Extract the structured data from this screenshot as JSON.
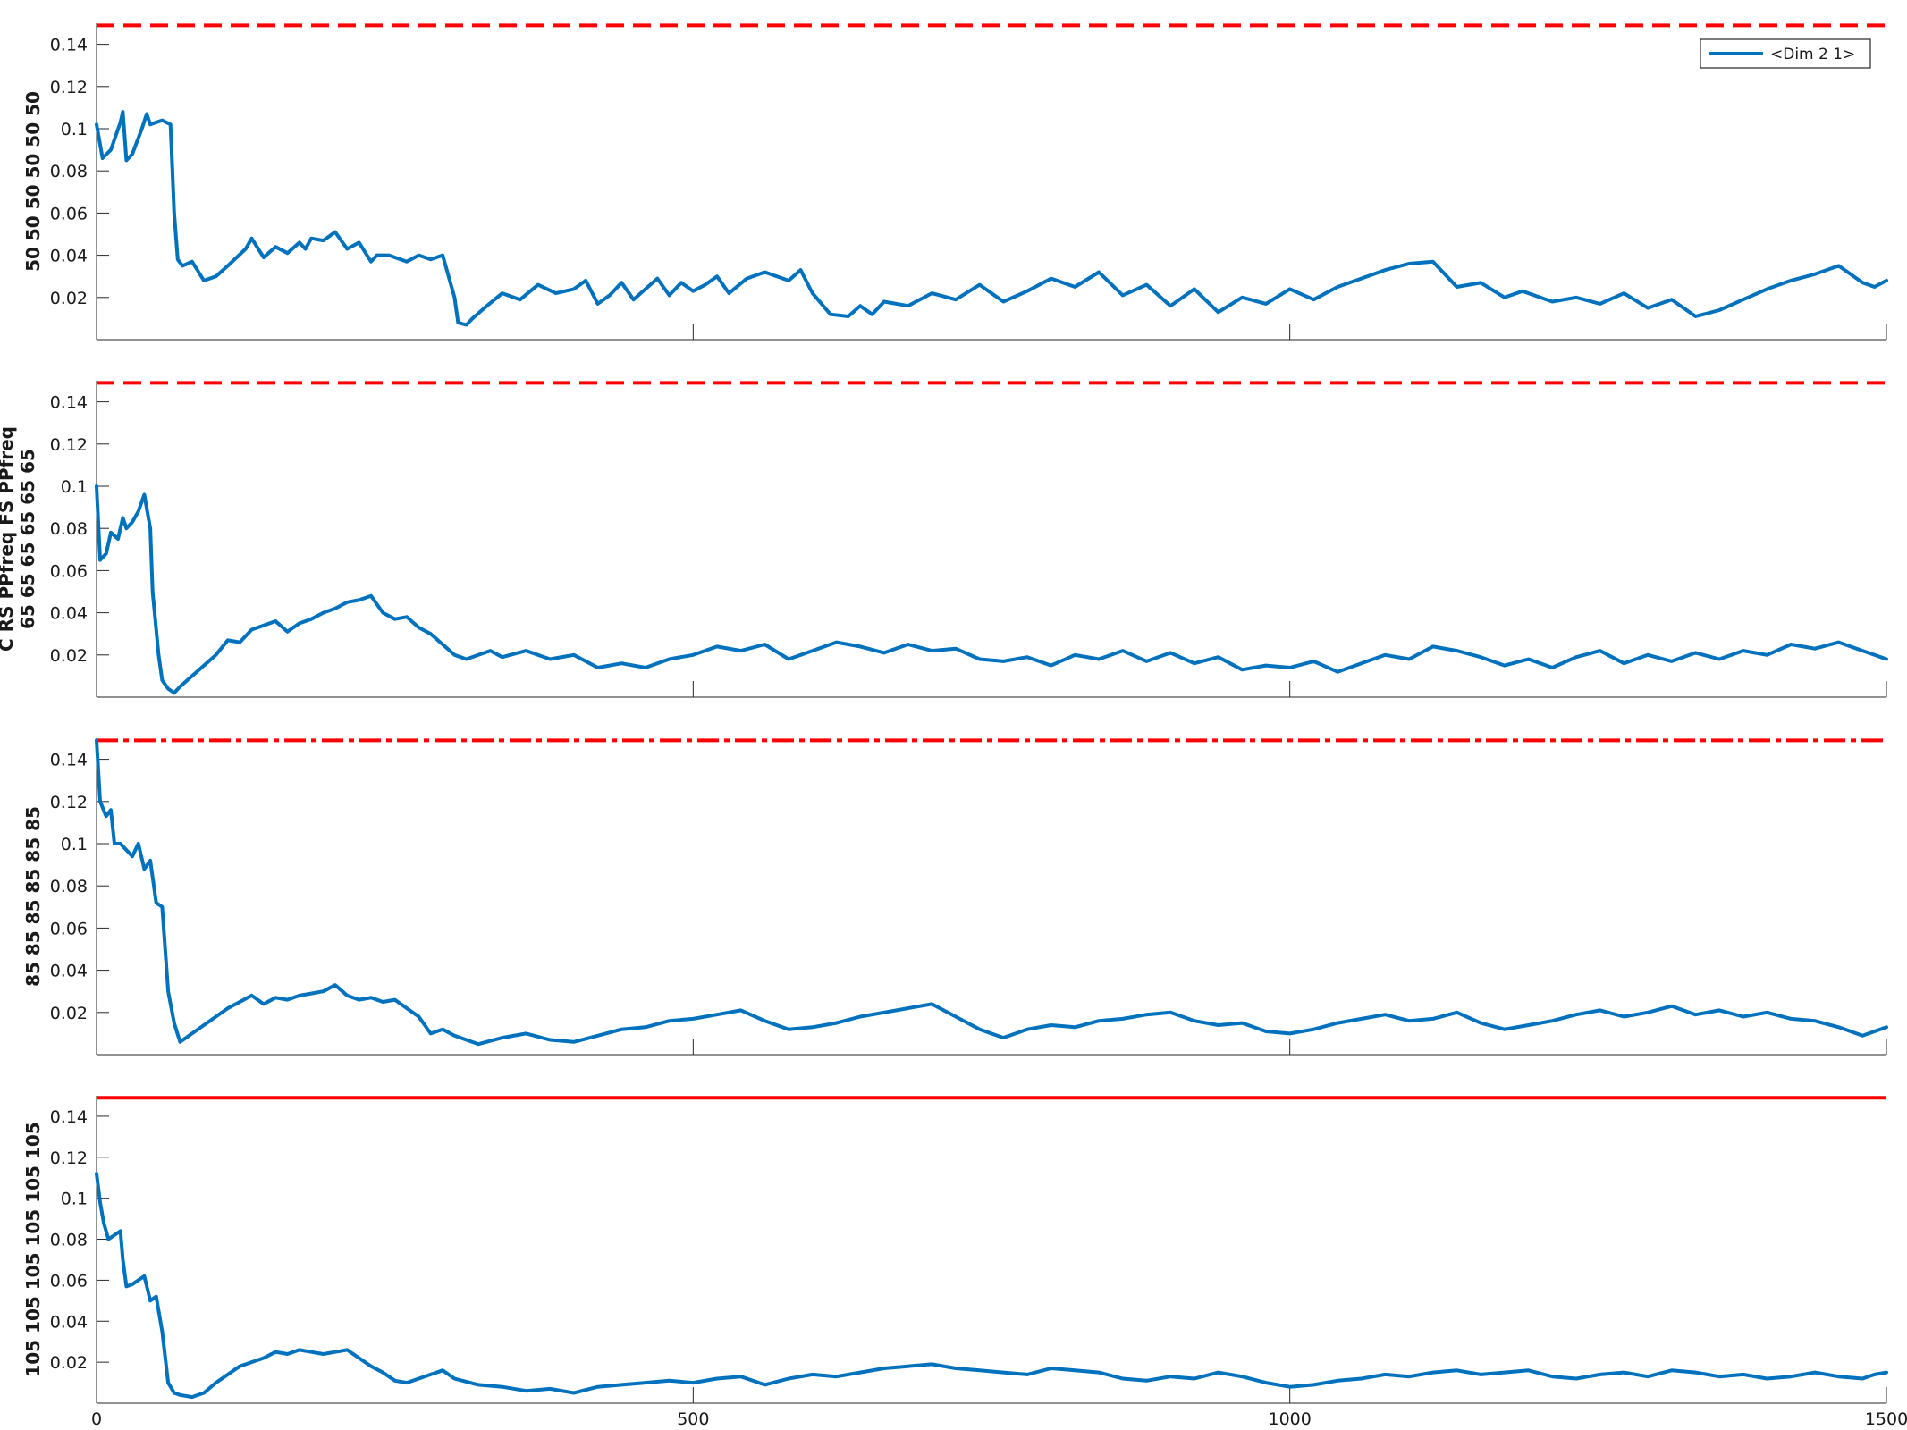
{
  "colors": {
    "series": "#0072BD",
    "threshold": "#FF0000",
    "axis": "#262626"
  },
  "legend": {
    "label": "<Dim 2 1>",
    "placement": "top-right of first panel"
  },
  "chart_data": [
    {
      "type": "line",
      "ylabel": "50 50 50 50 50 50",
      "xlim": [
        0,
        1500
      ],
      "ylim": [
        0,
        0.15
      ],
      "xticks": [
        "",
        "",
        ""
      ],
      "yticks": [
        "0.02",
        "0.04",
        "0.06",
        "0.08",
        "0.1",
        "0.12",
        "0.14"
      ],
      "threshold": {
        "style": "dashed",
        "y": 0.149
      },
      "series": [
        {
          "name": "<Dim 2 1>",
          "x": [
            0,
            5,
            12,
            20,
            22,
            25,
            30,
            38,
            42,
            45,
            55,
            62,
            65,
            68,
            72,
            80,
            90,
            100,
            110,
            125,
            130,
            140,
            150,
            160,
            170,
            175,
            180,
            190,
            200,
            210,
            220,
            230,
            235,
            245,
            260,
            270,
            280,
            290,
            300,
            303,
            310,
            315,
            325,
            340,
            355,
            370,
            385,
            400,
            410,
            420,
            430,
            440,
            450,
            460,
            470,
            480,
            490,
            500,
            510,
            520,
            530,
            545,
            560,
            580,
            590,
            600,
            615,
            630,
            640,
            650,
            660,
            680,
            700,
            720,
            740,
            760,
            780,
            800,
            820,
            840,
            860,
            880,
            900,
            920,
            940,
            960,
            980,
            1000,
            1020,
            1040,
            1060,
            1080,
            1100,
            1120,
            1140,
            1160,
            1180,
            1195,
            1200,
            1220,
            1240,
            1260,
            1280,
            1300,
            1320,
            1340,
            1360,
            1380,
            1400,
            1420,
            1440,
            1460,
            1480,
            1490,
            1500
          ],
          "y": [
            0.102,
            0.086,
            0.09,
            0.103,
            0.108,
            0.085,
            0.088,
            0.1,
            0.107,
            0.102,
            0.104,
            0.102,
            0.06,
            0.038,
            0.035,
            0.037,
            0.028,
            0.03,
            0.035,
            0.043,
            0.048,
            0.039,
            0.044,
            0.041,
            0.046,
            0.043,
            0.048,
            0.047,
            0.051,
            0.043,
            0.046,
            0.037,
            0.04,
            0.04,
            0.037,
            0.04,
            0.038,
            0.04,
            0.02,
            0.008,
            0.007,
            0.01,
            0.015,
            0.022,
            0.019,
            0.026,
            0.022,
            0.024,
            0.028,
            0.017,
            0.021,
            0.027,
            0.019,
            0.024,
            0.029,
            0.021,
            0.027,
            0.023,
            0.026,
            0.03,
            0.022,
            0.029,
            0.032,
            0.028,
            0.033,
            0.022,
            0.012,
            0.011,
            0.016,
            0.012,
            0.018,
            0.016,
            0.022,
            0.019,
            0.026,
            0.018,
            0.023,
            0.029,
            0.025,
            0.032,
            0.021,
            0.026,
            0.016,
            0.024,
            0.013,
            0.02,
            0.017,
            0.024,
            0.019,
            0.025,
            0.029,
            0.033,
            0.036,
            0.037,
            0.025,
            0.027,
            0.02,
            0.023,
            0.022,
            0.018,
            0.02,
            0.017,
            0.022,
            0.015,
            0.019,
            0.011,
            0.014,
            0.019,
            0.024,
            0.028,
            0.031,
            0.035,
            0.027,
            0.025,
            0.028
          ]
        }
      ]
    },
    {
      "type": "line",
      "ylabel": "C RS PPfreq FS PPfreq\n65 65 65 65 65 65",
      "xlim": [
        0,
        1500
      ],
      "ylim": [
        0,
        0.15
      ],
      "xticks": [
        "",
        "",
        ""
      ],
      "yticks": [
        "0.02",
        "0.04",
        "0.06",
        "0.08",
        "0.1",
        "0.12",
        "0.14"
      ],
      "threshold": {
        "style": "dashed",
        "y": 0.149
      },
      "series": [
        {
          "x": [
            0,
            3,
            8,
            12,
            18,
            22,
            25,
            30,
            35,
            40,
            45,
            47,
            52,
            55,
            60,
            65,
            70,
            80,
            90,
            100,
            110,
            120,
            130,
            140,
            150,
            160,
            170,
            180,
            190,
            200,
            210,
            220,
            230,
            240,
            250,
            260,
            270,
            280,
            290,
            300,
            310,
            320,
            330,
            340,
            360,
            380,
            400,
            420,
            440,
            460,
            480,
            500,
            520,
            540,
            560,
            580,
            600,
            620,
            640,
            660,
            680,
            700,
            720,
            740,
            760,
            780,
            800,
            820,
            840,
            860,
            880,
            900,
            920,
            940,
            960,
            980,
            1000,
            1020,
            1040,
            1060,
            1080,
            1100,
            1120,
            1140,
            1160,
            1180,
            1200,
            1220,
            1240,
            1260,
            1280,
            1300,
            1320,
            1340,
            1360,
            1380,
            1400,
            1420,
            1440,
            1460,
            1480,
            1490,
            1500
          ],
          "y": [
            0.1,
            0.065,
            0.068,
            0.078,
            0.075,
            0.085,
            0.08,
            0.083,
            0.088,
            0.096,
            0.08,
            0.05,
            0.02,
            0.008,
            0.004,
            0.002,
            0.005,
            0.01,
            0.015,
            0.02,
            0.027,
            0.026,
            0.032,
            0.034,
            0.036,
            0.031,
            0.035,
            0.037,
            0.04,
            0.042,
            0.045,
            0.046,
            0.048,
            0.04,
            0.037,
            0.038,
            0.033,
            0.03,
            0.025,
            0.02,
            0.018,
            0.02,
            0.022,
            0.019,
            0.022,
            0.018,
            0.02,
            0.014,
            0.016,
            0.014,
            0.018,
            0.02,
            0.024,
            0.022,
            0.025,
            0.018,
            0.022,
            0.026,
            0.024,
            0.021,
            0.025,
            0.022,
            0.023,
            0.018,
            0.017,
            0.019,
            0.015,
            0.02,
            0.018,
            0.022,
            0.017,
            0.021,
            0.016,
            0.019,
            0.013,
            0.015,
            0.014,
            0.017,
            0.012,
            0.016,
            0.02,
            0.018,
            0.024,
            0.022,
            0.019,
            0.015,
            0.018,
            0.014,
            0.019,
            0.022,
            0.016,
            0.02,
            0.017,
            0.021,
            0.018,
            0.022,
            0.02,
            0.025,
            0.023,
            0.026,
            0.022,
            0.02,
            0.018
          ]
        }
      ]
    },
    {
      "type": "line",
      "ylabel": "85 85 85 85 85 85",
      "xlim": [
        0,
        1500
      ],
      "ylim": [
        0,
        0.15
      ],
      "xticks": [
        "",
        "",
        ""
      ],
      "yticks": [
        "0.02",
        "0.04",
        "0.06",
        "0.08",
        "0.1",
        "0.12",
        "0.14"
      ],
      "threshold": {
        "style": "dash-dot",
        "y": 0.149
      },
      "series": [
        {
          "x": [
            0,
            3,
            8,
            12,
            15,
            20,
            25,
            30,
            35,
            40,
            45,
            50,
            55,
            60,
            65,
            70,
            75,
            80,
            90,
            100,
            110,
            120,
            130,
            140,
            150,
            160,
            170,
            180,
            190,
            200,
            210,
            220,
            230,
            240,
            250,
            260,
            270,
            280,
            290,
            300,
            320,
            340,
            360,
            380,
            400,
            420,
            440,
            460,
            480,
            500,
            520,
            540,
            560,
            580,
            600,
            620,
            640,
            660,
            680,
            700,
            720,
            740,
            760,
            780,
            800,
            820,
            840,
            860,
            880,
            900,
            920,
            940,
            960,
            980,
            1000,
            1020,
            1040,
            1060,
            1080,
            1100,
            1120,
            1140,
            1160,
            1180,
            1200,
            1220,
            1240,
            1260,
            1280,
            1300,
            1320,
            1340,
            1360,
            1380,
            1400,
            1420,
            1440,
            1460,
            1480,
            1490,
            1500
          ],
          "y": [
            0.149,
            0.12,
            0.113,
            0.116,
            0.1,
            0.1,
            0.097,
            0.094,
            0.1,
            0.088,
            0.092,
            0.072,
            0.07,
            0.03,
            0.015,
            0.006,
            0.008,
            0.01,
            0.014,
            0.018,
            0.022,
            0.025,
            0.028,
            0.024,
            0.027,
            0.026,
            0.028,
            0.029,
            0.03,
            0.033,
            0.028,
            0.026,
            0.027,
            0.025,
            0.026,
            0.022,
            0.018,
            0.01,
            0.012,
            0.009,
            0.005,
            0.008,
            0.01,
            0.007,
            0.006,
            0.009,
            0.012,
            0.013,
            0.016,
            0.017,
            0.019,
            0.021,
            0.016,
            0.012,
            0.013,
            0.015,
            0.018,
            0.02,
            0.022,
            0.024,
            0.018,
            0.012,
            0.008,
            0.012,
            0.014,
            0.013,
            0.016,
            0.017,
            0.019,
            0.02,
            0.016,
            0.014,
            0.015,
            0.011,
            0.01,
            0.012,
            0.015,
            0.017,
            0.019,
            0.016,
            0.017,
            0.02,
            0.015,
            0.012,
            0.014,
            0.016,
            0.019,
            0.021,
            0.018,
            0.02,
            0.023,
            0.019,
            0.021,
            0.018,
            0.02,
            0.017,
            0.016,
            0.013,
            0.009,
            0.011,
            0.013
          ]
        }
      ]
    },
    {
      "type": "line",
      "ylabel": "105 105 105 105 105 105",
      "xlim": [
        0,
        1500
      ],
      "ylim": [
        0,
        0.15
      ],
      "xticks": [
        "0",
        "500",
        "1000",
        "1500"
      ],
      "yticks": [
        "0.02",
        "0.04",
        "0.06",
        "0.08",
        "0.1",
        "0.12",
        "0.14"
      ],
      "threshold": {
        "style": "solid",
        "y": 0.149
      },
      "series": [
        {
          "x": [
            0,
            3,
            6,
            10,
            15,
            20,
            22,
            25,
            30,
            35,
            40,
            45,
            50,
            55,
            60,
            65,
            70,
            80,
            90,
            100,
            110,
            120,
            130,
            140,
            150,
            160,
            170,
            180,
            190,
            200,
            210,
            220,
            230,
            240,
            250,
            260,
            270,
            280,
            290,
            300,
            320,
            340,
            360,
            380,
            400,
            420,
            440,
            460,
            480,
            500,
            520,
            540,
            560,
            580,
            600,
            620,
            640,
            660,
            680,
            700,
            720,
            740,
            760,
            780,
            800,
            820,
            840,
            860,
            880,
            900,
            920,
            940,
            960,
            980,
            1000,
            1020,
            1040,
            1060,
            1080,
            1100,
            1120,
            1140,
            1160,
            1180,
            1200,
            1220,
            1240,
            1260,
            1280,
            1300,
            1320,
            1340,
            1360,
            1380,
            1400,
            1420,
            1440,
            1460,
            1480,
            1490,
            1500
          ],
          "y": [
            0.112,
            0.098,
            0.088,
            0.08,
            0.082,
            0.084,
            0.07,
            0.057,
            0.058,
            0.06,
            0.062,
            0.05,
            0.052,
            0.035,
            0.01,
            0.005,
            0.004,
            0.003,
            0.005,
            0.01,
            0.014,
            0.018,
            0.02,
            0.022,
            0.025,
            0.024,
            0.026,
            0.025,
            0.024,
            0.025,
            0.026,
            0.022,
            0.018,
            0.015,
            0.011,
            0.01,
            0.012,
            0.014,
            0.016,
            0.012,
            0.009,
            0.008,
            0.006,
            0.007,
            0.005,
            0.008,
            0.009,
            0.01,
            0.011,
            0.01,
            0.012,
            0.013,
            0.009,
            0.012,
            0.014,
            0.013,
            0.015,
            0.017,
            0.018,
            0.019,
            0.017,
            0.016,
            0.015,
            0.014,
            0.017,
            0.016,
            0.015,
            0.012,
            0.011,
            0.013,
            0.012,
            0.015,
            0.013,
            0.01,
            0.008,
            0.009,
            0.011,
            0.012,
            0.014,
            0.013,
            0.015,
            0.016,
            0.014,
            0.015,
            0.016,
            0.013,
            0.012,
            0.014,
            0.015,
            0.013,
            0.016,
            0.015,
            0.013,
            0.014,
            0.012,
            0.013,
            0.015,
            0.013,
            0.012,
            0.014,
            0.015
          ]
        }
      ]
    }
  ]
}
